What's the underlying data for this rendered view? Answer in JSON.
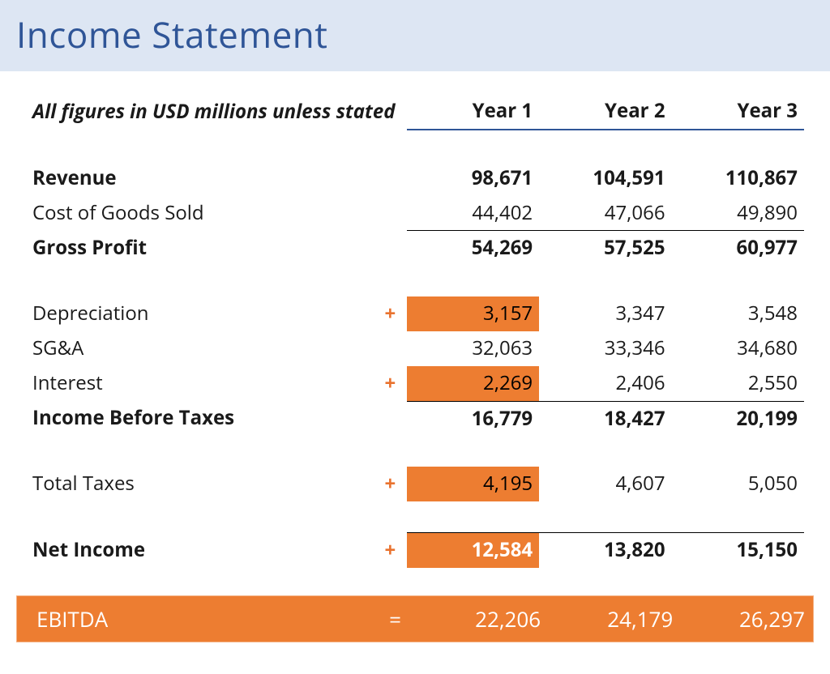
{
  "title": "Income Statement",
  "note": "All figures in USD millions unless stated",
  "columns": [
    "Year 1",
    "Year 2",
    "Year 3"
  ],
  "colors": {
    "title_bg": "#dde6f3",
    "title_text": "#2f5597",
    "header_border": "#2f5597",
    "highlight": "#ed7d31",
    "marker": "#e9722e",
    "text": "#1a1a1a",
    "ebitda_text": "#ffffff"
  },
  "typography": {
    "title_fontsize": 44,
    "body_fontsize": 24,
    "note_fontsize": 22,
    "ebitda_fontsize": 26
  },
  "rows": {
    "revenue": {
      "label": "Revenue",
      "bold": true,
      "marker": "",
      "values": [
        "98,671",
        "104,591",
        "110,867"
      ]
    },
    "cogs": {
      "label": "Cost of Goods Sold",
      "bold": false,
      "marker": "",
      "values": [
        "44,402",
        "47,066",
        "49,890"
      ]
    },
    "gross": {
      "label": "Gross Profit",
      "bold": true,
      "marker": "",
      "values": [
        "54,269",
        "57,525",
        "60,977"
      ],
      "sum": true
    },
    "depr": {
      "label": "Depreciation",
      "bold": false,
      "marker": "+",
      "values": [
        "3,157",
        "3,347",
        "3,548"
      ],
      "hl_year1": true
    },
    "sga": {
      "label": "SG&A",
      "bold": false,
      "marker": "",
      "values": [
        "32,063",
        "33,346",
        "34,680"
      ]
    },
    "interest": {
      "label": "Interest",
      "bold": false,
      "marker": "+",
      "values": [
        "2,269",
        "2,406",
        "2,550"
      ],
      "hl_year1": true
    },
    "ibt": {
      "label": "Income Before Taxes",
      "bold": true,
      "marker": "",
      "values": [
        "16,779",
        "18,427",
        "20,199"
      ],
      "sum": true
    },
    "taxes": {
      "label": "Total Taxes",
      "bold": false,
      "marker": "+",
      "values": [
        "4,195",
        "4,607",
        "5,050"
      ],
      "hl_year1": true
    },
    "net": {
      "label": "Net Income",
      "bold": true,
      "marker": "+",
      "values": [
        "12,584",
        "13,820",
        "15,150"
      ],
      "sum": true,
      "hl_year1": true
    }
  },
  "ebitda": {
    "label": "EBITDA",
    "eq": "=",
    "values": [
      "22,206",
      "24,179",
      "26,297"
    ]
  }
}
